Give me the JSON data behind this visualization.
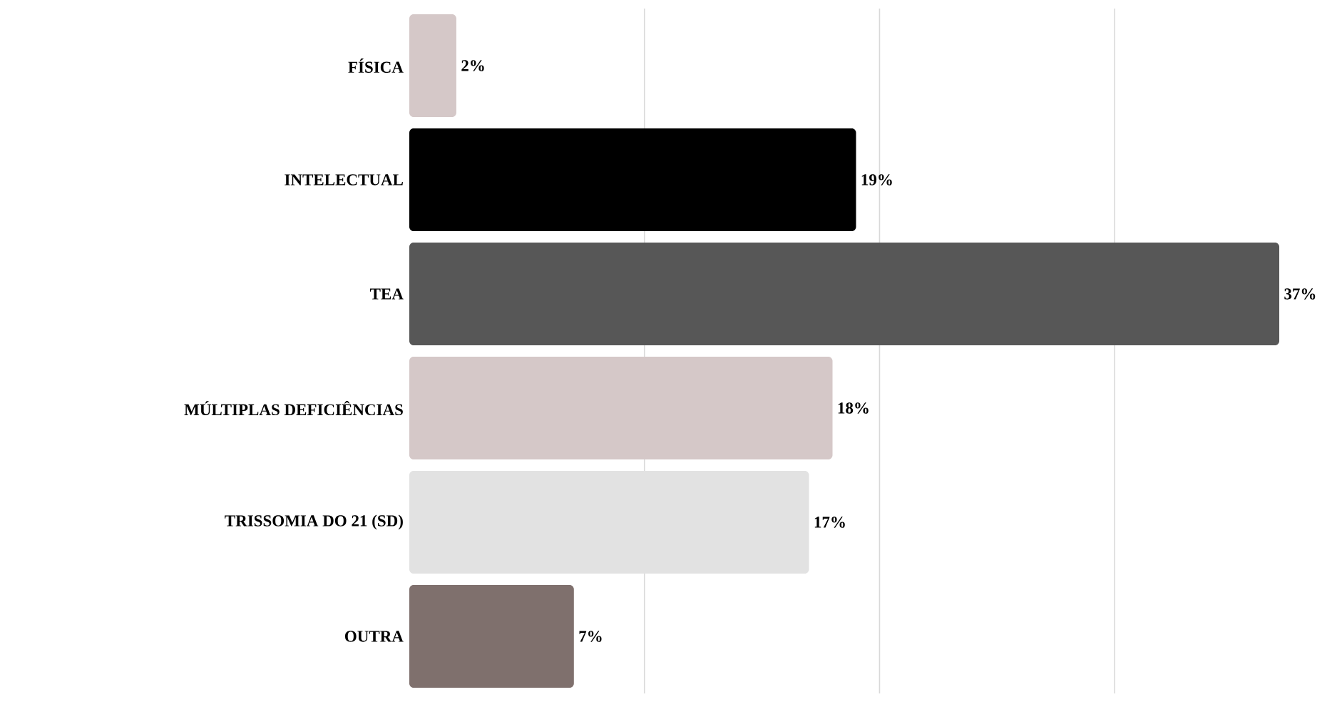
{
  "chart_data": {
    "type": "bar",
    "orientation": "horizontal",
    "categories": [
      "FÍSICA",
      "INTELECTUAL",
      "TEA",
      "MÚLTIPLAS DEFICIÊNCIAS",
      "TRISSOMIA DO 21 (SD)",
      "OUTRA"
    ],
    "values": [
      2,
      19,
      37,
      18,
      17,
      7
    ],
    "colors": [
      "#d5c8c8",
      "#000000",
      "#575757",
      "#d5c8c8",
      "#e2e2e2",
      "#7f706d"
    ],
    "value_labels": [
      "2%",
      "19%",
      "37%",
      "18%",
      "17%",
      "7%"
    ],
    "xticks": [
      {
        "value": 10,
        "label": null
      },
      {
        "value": 20,
        "label": null
      },
      {
        "value": 30,
        "label": null
      }
    ],
    "grid": "x",
    "tick_labels": "y"
  }
}
